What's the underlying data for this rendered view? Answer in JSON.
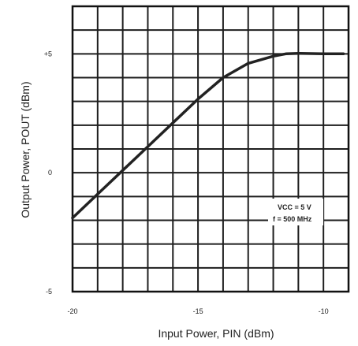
{
  "chart_data": {
    "type": "line",
    "xlabel": "Input Power, PIN (dBm)",
    "ylabel": "Output Power, POUT (dBm)",
    "xlim": [
      -20,
      -9
    ],
    "ylim": [
      -5,
      7
    ],
    "x_ticks": [
      {
        "value": -20,
        "label": "-20"
      },
      {
        "value": -15,
        "label": "-15"
      },
      {
        "value": -10,
        "label": "-10"
      }
    ],
    "y_ticks": [
      {
        "value": 5,
        "label": "+5"
      },
      {
        "value": 0,
        "label": "0"
      },
      {
        "value": -5,
        "label": "-5"
      }
    ],
    "grid": true,
    "x_grid_step": 1,
    "y_grid_step": 1,
    "series": [
      {
        "x": [
          -20,
          -19,
          -18,
          -17,
          -16,
          -15,
          -14,
          -13,
          -12,
          -11.5,
          -11,
          -10,
          -9.2
        ],
        "y": [
          -1.9,
          -0.9,
          0.1,
          1.1,
          2.1,
          3.1,
          4.0,
          4.6,
          4.9,
          5.0,
          5.02,
          5.0,
          5.0
        ]
      }
    ],
    "annotations": [
      "VCC = 5 V",
      "f = 500 MHz"
    ]
  }
}
